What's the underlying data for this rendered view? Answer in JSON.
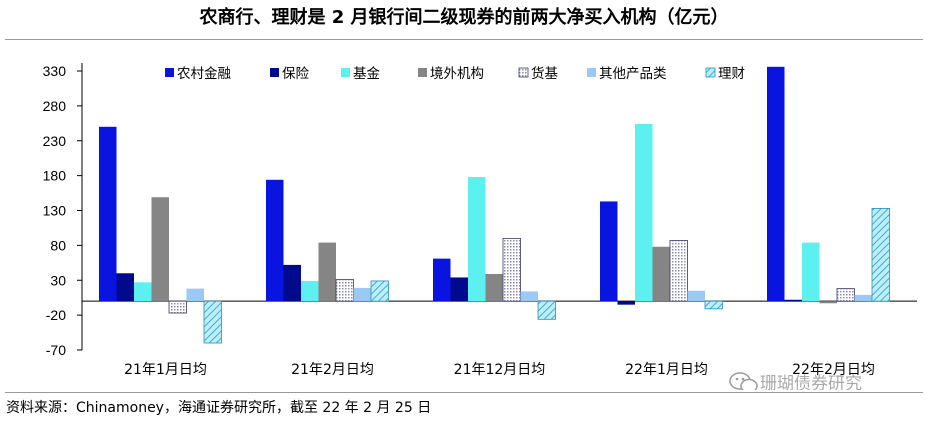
{
  "title": "农商行、理财是 2 月银行间二级现券的前两大净买入机构（亿元）",
  "source": "资料来源：Chinamoney，海通证券研究所，截至 22 年 2 月 25 日",
  "watermark": "珊瑚债券研究",
  "chart_data": {
    "type": "bar",
    "title": "农商行、理财是 2 月银行间二级现券的前两大净买入机构（亿元）",
    "categories": [
      "21年1月日均",
      "21年2月日均",
      "21年12月日均",
      "22年1月日均",
      "22年2月日均"
    ],
    "ylim": [
      -70,
      330
    ],
    "yticks": [
      330,
      280,
      230,
      180,
      130,
      80,
      30,
      -20,
      -70
    ],
    "grid": false,
    "legend_position": "top",
    "series": [
      {
        "name": "农村金融",
        "color": "#0a14e0",
        "pattern": "solid",
        "values": [
          250,
          174,
          61,
          143,
          336
        ]
      },
      {
        "name": "保险",
        "color": "#000a8c",
        "pattern": "solid",
        "values": [
          40,
          52,
          34,
          -5,
          2
        ]
      },
      {
        "name": "基金",
        "color": "#5df0f0",
        "pattern": "solid",
        "values": [
          27,
          29,
          178,
          254,
          84
        ]
      },
      {
        "name": "境外机构",
        "color": "#858585",
        "pattern": "solid",
        "values": [
          149,
          84,
          39,
          78,
          -3
        ]
      },
      {
        "name": "货基",
        "color": "#b8b8d8",
        "pattern": "dots",
        "values": [
          -17,
          31,
          90,
          87,
          18
        ]
      },
      {
        "name": "其他产品类",
        "color": "#9cc8f4",
        "pattern": "solid",
        "values": [
          18,
          19,
          14,
          15,
          9
        ]
      },
      {
        "name": "理财",
        "color": "#5fc8e8",
        "pattern": "diagonal",
        "values": [
          -60,
          29,
          -26,
          -11,
          133
        ]
      }
    ]
  }
}
